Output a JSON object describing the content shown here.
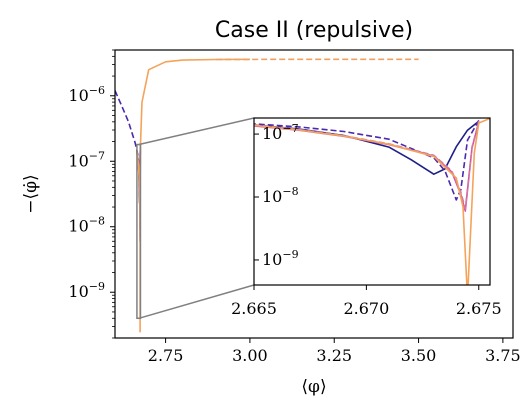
{
  "chart_data": {
    "type": "line",
    "title": "Case II (repulsive)",
    "xlabel": "⟨φ⟩",
    "ylabel": "−⟨φ̇⟩",
    "yscale": "log",
    "xlim": [
      2.6,
      3.78
    ],
    "ylim": [
      2e-10,
      5e-06
    ],
    "x_ticks": [
      2.75,
      3.0,
      3.25,
      3.5,
      3.75
    ],
    "x_tick_labels": [
      "2.75",
      "3.00",
      "3.25",
      "3.50",
      "3.75"
    ],
    "y_ticks": [
      1e-09,
      1e-08,
      1e-07,
      1e-06
    ],
    "y_tick_labels": [
      {
        "base": "10",
        "exp": "−9"
      },
      {
        "base": "10",
        "exp": "−8"
      },
      {
        "base": "10",
        "exp": "−7"
      },
      {
        "base": "10",
        "exp": "−6"
      }
    ],
    "colors": {
      "navy_solid": "#1f1f8a",
      "indigo_dashed": "#4a2ab0",
      "magenta_solid": "#d452a8",
      "pink_dashed": "#d07aa0",
      "orange_solid": "#f4a35a",
      "orange_dashed": "#f0a060",
      "zoom_box": "#808080"
    },
    "series": [
      {
        "style": "solid",
        "color_key": "navy_solid",
        "x": [
          2.665,
          2.667,
          2.669,
          2.671,
          2.672,
          2.673,
          2.6735,
          2.674,
          2.6745,
          2.675
        ],
        "y": [
          1.4e-07,
          1.2e-07,
          9.5e-08,
          6.2e-08,
          3.9e-08,
          2.3e-08,
          2.8e-08,
          6.3e-08,
          1.15e-07,
          1.6e-07
        ]
      },
      {
        "style": "dashed",
        "color_key": "indigo_dashed",
        "x": [
          2.6,
          2.62,
          2.64,
          2.66,
          2.665,
          2.667,
          2.669,
          2.671,
          2.673,
          2.6735,
          2.674,
          2.6742,
          2.6745,
          2.675
        ],
        "y": [
          1.2e-06,
          7e-07,
          4e-07,
          1.9e-07,
          1.45e-07,
          1.3e-07,
          1.1e-07,
          8.3e-08,
          4.2e-08,
          2.6e-08,
          9e-09,
          1.3e-08,
          8e-08,
          1.65e-07
        ]
      },
      {
        "style": "solid",
        "color_key": "magenta_solid",
        "x": [
          2.665,
          2.667,
          2.669,
          2.671,
          2.673,
          2.6738,
          2.6742,
          2.6744,
          2.6747,
          2.675
        ],
        "y": [
          1.35e-07,
          1.15e-07,
          9.2e-08,
          6.8e-08,
          4.5e-08,
          2.5e-08,
          1.1e-08,
          6e-09,
          6e-08,
          1.55e-07
        ]
      },
      {
        "style": "dashed",
        "color_key": "pink_dashed",
        "x": [
          2.665,
          2.667,
          2.669,
          2.671,
          2.673,
          2.6738,
          2.6742,
          2.6744,
          2.6747,
          2.675
        ],
        "y": [
          1.4e-07,
          1.18e-07,
          9.4e-08,
          7e-08,
          4.6e-08,
          2.6e-08,
          1.2e-08,
          6.5e-09,
          6.2e-08,
          1.6e-07
        ]
      },
      {
        "style": "solid",
        "color_key": "orange_solid",
        "x": [
          2.665,
          2.667,
          2.669,
          2.671,
          2.673,
          2.674,
          2.6743,
          2.6745,
          2.6748,
          2.675,
          2.68,
          2.7,
          2.75,
          2.8,
          2.9,
          3.0
        ],
        "y": [
          1.38e-07,
          1.16e-07,
          9.3e-08,
          6.9e-08,
          4.4e-08,
          2e-08,
          7e-09,
          2.5e-10,
          5e-08,
          1.5e-07,
          8e-07,
          2.5e-06,
          3.3e-06,
          3.5e-06,
          3.58e-06,
          3.6e-06
        ]
      },
      {
        "style": "dashed",
        "color_key": "orange_dashed",
        "x": [
          2.9,
          3.1,
          3.3,
          3.5
        ],
        "y": [
          3.58e-06,
          3.6e-06,
          3.6e-06,
          3.6e-06
        ]
      }
    ],
    "inset": {
      "xlim": [
        2.665,
        2.6755
      ],
      "ylim": [
        4e-10,
        1.8e-07
      ],
      "x_ticks": [
        2.665,
        2.67,
        2.675
      ],
      "x_tick_labels": [
        "2.665",
        "2.670",
        "2.675"
      ],
      "y_ticks": [
        1e-09,
        1e-08,
        1e-07
      ],
      "y_tick_labels": [
        {
          "base": "10",
          "exp": "−9"
        },
        {
          "base": "10",
          "exp": "−8"
        },
        {
          "base": "10",
          "exp": "−7"
        }
      ]
    }
  }
}
